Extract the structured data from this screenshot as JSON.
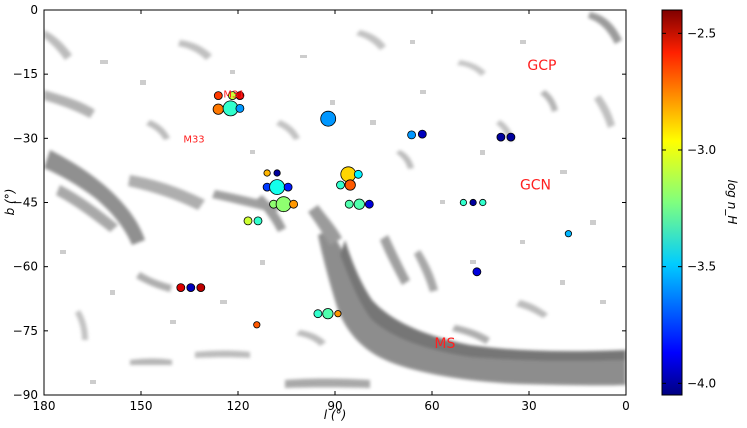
{
  "chart_data": {
    "type": "scatter",
    "title": "",
    "xlabel": "l (°)",
    "ylabel": "b (°)",
    "xlim": [
      180,
      0
    ],
    "ylim": [
      -90,
      0
    ],
    "x_ticks": [
      "180",
      "150",
      "120",
      "90",
      "60",
      "30",
      "0"
    ],
    "y_ticks": [
      "0",
      "−15",
      "−30",
      "−45",
      "−60",
      "−75",
      "−90"
    ],
    "background": "grayscale HI column density map (Magellanic Stream and Galactic HVC complexes)",
    "colorbar": {
      "label": "log n_H",
      "range": [
        -4.05,
        -2.4
      ],
      "colormap": "jet",
      "ticks": [
        "−2.5",
        "−3.0",
        "−3.5",
        "−4.0"
      ]
    },
    "annotations": [
      {
        "text": "M31",
        "l": 121.2,
        "b": -20.5
      },
      {
        "text": "M33",
        "l": 133.6,
        "b": -31.0
      },
      {
        "text": "GCP",
        "l": 26,
        "b": -14
      },
      {
        "text": "GCN",
        "l": 28,
        "b": -42
      },
      {
        "text": "MS",
        "l": 56,
        "b": -79
      }
    ],
    "points": [
      {
        "l": 126.1,
        "b": -20.0,
        "v": -2.7,
        "size": "small"
      },
      {
        "l": 121.7,
        "b": -20.0,
        "v": -3.1,
        "size": "small"
      },
      {
        "l": 119.4,
        "b": -20.0,
        "v": -2.55,
        "size": "small"
      },
      {
        "l": 126.1,
        "b": -23.2,
        "v": -2.8,
        "size": "medium"
      },
      {
        "l": 122.3,
        "b": -23.0,
        "v": -3.35,
        "size": "large"
      },
      {
        "l": 119.4,
        "b": -23.0,
        "v": -3.6,
        "size": "small"
      },
      {
        "l": 92.1,
        "b": -25.4,
        "v": -3.6,
        "size": "large"
      },
      {
        "l": 66.3,
        "b": -29.2,
        "v": -3.6,
        "size": "small"
      },
      {
        "l": 63.0,
        "b": -29.0,
        "v": -3.95,
        "size": "small"
      },
      {
        "l": 38.7,
        "b": -29.7,
        "v": -4.0,
        "size": "small"
      },
      {
        "l": 35.6,
        "b": -29.7,
        "v": -4.0,
        "size": "small"
      },
      {
        "l": 111.0,
        "b": -38.1,
        "v": -2.9,
        "size": "tiny"
      },
      {
        "l": 107.9,
        "b": -38.1,
        "v": -4.0,
        "size": "tiny"
      },
      {
        "l": 111.0,
        "b": -41.4,
        "v": -3.75,
        "size": "small"
      },
      {
        "l": 107.9,
        "b": -41.4,
        "v": -3.4,
        "size": "large"
      },
      {
        "l": 104.5,
        "b": -41.4,
        "v": -3.8,
        "size": "small"
      },
      {
        "l": 85.9,
        "b": -38.4,
        "v": -2.95,
        "size": "large"
      },
      {
        "l": 82.8,
        "b": -38.4,
        "v": -3.45,
        "size": "small"
      },
      {
        "l": 88.3,
        "b": -40.9,
        "v": -3.35,
        "size": "small"
      },
      {
        "l": 85.3,
        "b": -40.9,
        "v": -2.75,
        "size": "medium"
      },
      {
        "l": 109.0,
        "b": -45.4,
        "v": -3.2,
        "size": "small"
      },
      {
        "l": 105.9,
        "b": -45.4,
        "v": -3.2,
        "size": "large"
      },
      {
        "l": 102.8,
        "b": -45.4,
        "v": -2.85,
        "size": "small"
      },
      {
        "l": 85.6,
        "b": -45.4,
        "v": -3.3,
        "size": "small"
      },
      {
        "l": 82.5,
        "b": -45.4,
        "v": -3.3,
        "size": "medium"
      },
      {
        "l": 79.4,
        "b": -45.4,
        "v": -3.9,
        "size": "small"
      },
      {
        "l": 116.9,
        "b": -49.3,
        "v": -3.1,
        "size": "small"
      },
      {
        "l": 113.8,
        "b": -49.3,
        "v": -3.35,
        "size": "small"
      },
      {
        "l": 50.3,
        "b": -45.0,
        "v": -3.35,
        "size": "tiny"
      },
      {
        "l": 47.3,
        "b": -45.0,
        "v": -4.0,
        "size": "tiny"
      },
      {
        "l": 44.3,
        "b": -45.0,
        "v": -3.35,
        "size": "tiny"
      },
      {
        "l": 17.8,
        "b": -52.3,
        "v": -3.55,
        "size": "tiny"
      },
      {
        "l": 46.1,
        "b": -61.2,
        "v": -3.9,
        "size": "small"
      },
      {
        "l": 137.7,
        "b": -64.9,
        "v": -2.55,
        "size": "small"
      },
      {
        "l": 134.6,
        "b": -64.9,
        "v": -3.95,
        "size": "small"
      },
      {
        "l": 131.5,
        "b": -64.9,
        "v": -2.5,
        "size": "small"
      },
      {
        "l": 95.3,
        "b": -71.0,
        "v": -3.35,
        "size": "small"
      },
      {
        "l": 92.2,
        "b": -71.0,
        "v": -3.3,
        "size": "medium"
      },
      {
        "l": 89.1,
        "b": -71.0,
        "v": -2.85,
        "size": "tiny"
      },
      {
        "l": 114.2,
        "b": -73.6,
        "v": -2.75,
        "size": "tiny"
      }
    ]
  }
}
